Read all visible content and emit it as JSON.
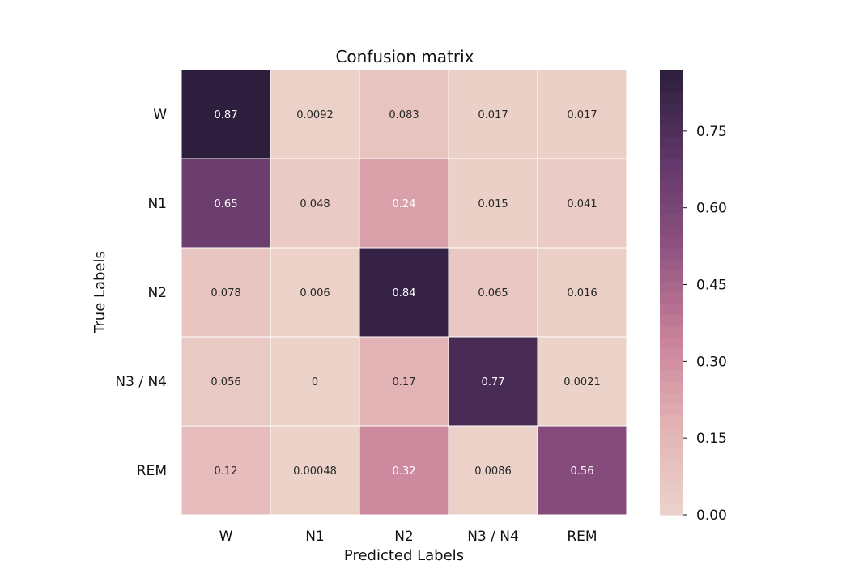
{
  "chart_data": {
    "type": "heatmap",
    "title": "Confusion matrix",
    "xlabel": "Predicted Labels",
    "ylabel": "True Labels",
    "x_categories": [
      "W",
      "N1",
      "N2",
      "N3 / N4",
      "REM"
    ],
    "y_categories": [
      "W",
      "N1",
      "N2",
      "N3 / N4",
      "REM"
    ],
    "values": [
      [
        0.87,
        0.0092,
        0.083,
        0.017,
        0.017
      ],
      [
        0.65,
        0.048,
        0.24,
        0.015,
        0.041
      ],
      [
        0.078,
        0.006,
        0.84,
        0.065,
        0.016
      ],
      [
        0.056,
        0,
        0.17,
        0.77,
        0.0021
      ],
      [
        0.12,
        0.00048,
        0.32,
        0.0086,
        0.56
      ]
    ],
    "cell_labels": [
      [
        "0.87",
        "0.0092",
        "0.083",
        "0.017",
        "0.017"
      ],
      [
        "0.65",
        "0.048",
        "0.24",
        "0.015",
        "0.041"
      ],
      [
        "0.078",
        "0.006",
        "0.84",
        "0.065",
        "0.016"
      ],
      [
        "0.056",
        "0",
        "0.17",
        "0.77",
        "0.0021"
      ],
      [
        "0.12",
        "0.00048",
        "0.32",
        "0.0086",
        "0.56"
      ]
    ],
    "colorbar": {
      "vmin": 0.0,
      "vmax": 0.87,
      "ticks": [
        0.0,
        0.15,
        0.3,
        0.45,
        0.6,
        0.75
      ],
      "tick_labels": [
        "0.00",
        "0.15",
        "0.30",
        "0.45",
        "0.60",
        "0.75"
      ]
    },
    "colormap": {
      "stops": [
        "#ecd3ca",
        "#e3b3b5",
        "#c98199",
        "#8f5280",
        "#5f3768",
        "#2c1e3c"
      ],
      "grid_line_color": "#ffffff"
    }
  }
}
